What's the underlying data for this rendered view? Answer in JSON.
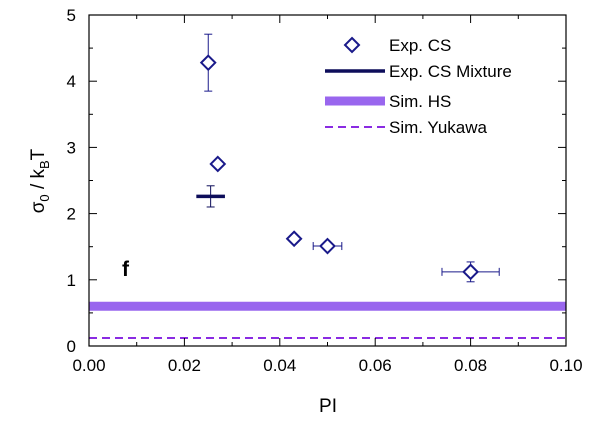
{
  "chart_data": {
    "type": "scatter",
    "xlabel": "PI",
    "ylabel": {
      "base": "σ",
      "base_sub": "0",
      "sep": " / k",
      "k_sub": "B",
      "tail": "T"
    },
    "xlim": [
      0,
      0.1
    ],
    "ylim": [
      0,
      5
    ],
    "x_ticks": [
      "0.00",
      "0.02",
      "0.04",
      "0.06",
      "0.08",
      "0.10"
    ],
    "y_ticks": [
      "0",
      "1",
      "2",
      "3",
      "4",
      "5"
    ],
    "panel_label": "f",
    "legend": {
      "position": "top-right",
      "entries": [
        "Exp. CS",
        "Exp. CS Mixture",
        "Sim. HS",
        "Sim. Yukawa"
      ]
    },
    "colors": {
      "exp_cs": "#1a1a8a",
      "mixture": "#0d0d5a",
      "sim_hs": "#9966ee",
      "sim_yukawa": "#8a2be2"
    },
    "series": [
      {
        "name": "Exp. CS",
        "marker": "diamond-open",
        "points": [
          {
            "x": 0.025,
            "y": 4.28,
            "yerr": 0.43,
            "xerr": 0
          },
          {
            "x": 0.027,
            "y": 2.75,
            "yerr": 0.05,
            "xerr": 0
          },
          {
            "x": 0.043,
            "y": 1.62,
            "yerr": 0.05,
            "xerr": 0
          },
          {
            "x": 0.05,
            "y": 1.51,
            "yerr": 0.05,
            "xerr": 0.003
          },
          {
            "x": 0.08,
            "y": 1.12,
            "yerr": 0.15,
            "xerr": 0.006
          }
        ]
      },
      {
        "name": "Exp. CS Mixture",
        "marker": "hbar",
        "points": [
          {
            "x": 0.0255,
            "y": 2.26,
            "yerr": 0.16,
            "xhalfwidth": 0.003
          }
        ]
      },
      {
        "name": "Sim. HS",
        "style": "thick-line",
        "y": 0.6
      },
      {
        "name": "Sim. Yukawa",
        "style": "dashed-line",
        "y": 0.12
      }
    ]
  }
}
